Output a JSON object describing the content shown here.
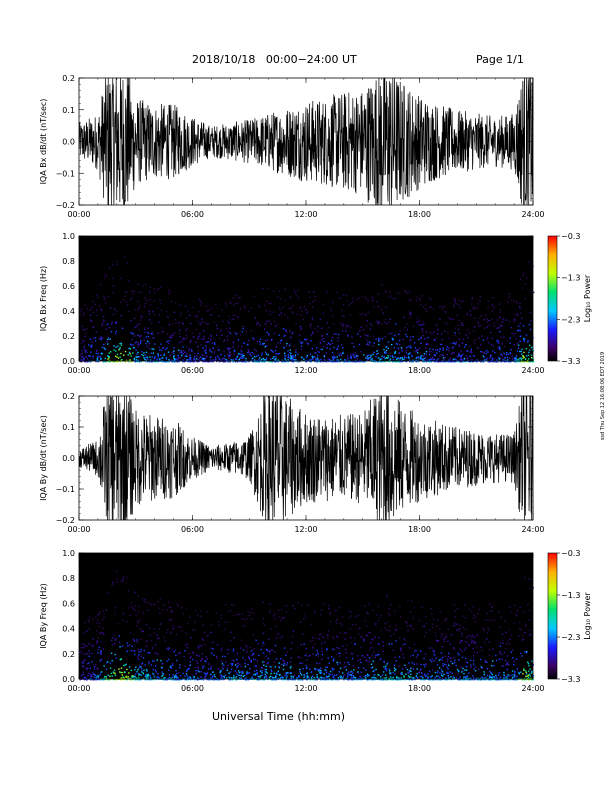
{
  "header": {
    "title": "2018/10/18   00:00−24:00 UT",
    "page": "Page 1/1"
  },
  "stamp": "ssd Thu Sep 12 16:08:06 EDT 2019",
  "xaxis_title": "Universal Time (hh:mm)",
  "colors": {
    "background": "#ffffff",
    "trace": "#000000",
    "spectrogram_bg": "#000000"
  },
  "chart_data": [
    {
      "type": "line",
      "ylabel": "IQA Bx dB/dt (nT/sec)",
      "xlim": [
        "00:00",
        "24:00"
      ],
      "ylim": [
        -0.2,
        0.2
      ],
      "x_ticks": [
        "00:00",
        "06:00",
        "12:00",
        "18:00",
        "24:00"
      ],
      "y_ticks": [
        "−0.2",
        "−0.1",
        "0.0",
        "0.1",
        "0.2"
      ],
      "amplitude_envelope": {
        "hours": [
          0,
          1,
          1.5,
          2,
          2.5,
          3,
          4,
          5,
          6,
          7,
          8,
          9,
          10,
          11,
          12,
          13,
          14,
          15,
          16,
          16.5,
          17,
          18,
          19,
          20,
          21,
          22,
          23,
          23.5,
          24
        ],
        "amplitude": [
          0.06,
          0.09,
          0.25,
          0.25,
          0.25,
          0.14,
          0.12,
          0.12,
          0.08,
          0.05,
          0.06,
          0.07,
          0.09,
          0.11,
          0.13,
          0.14,
          0.16,
          0.17,
          0.25,
          0.25,
          0.2,
          0.15,
          0.12,
          0.1,
          0.09,
          0.08,
          0.09,
          0.25,
          0.25
        ]
      }
    },
    {
      "type": "heatmap",
      "ylabel": "IQA Bx Freq (Hz)",
      "xlim": [
        "00:00",
        "24:00"
      ],
      "ylim": [
        0.0,
        1.0
      ],
      "x_ticks": [
        "00:00",
        "06:00",
        "12:00",
        "18:00",
        "24:00"
      ],
      "y_ticks": [
        "0.0",
        "0.2",
        "0.4",
        "0.6",
        "0.8",
        "1.0"
      ],
      "colorbar": {
        "label": "Log₁₀ Power",
        "range": [
          -3.3,
          -0.3
        ],
        "ticks": [
          "−0.3",
          "−1.3",
          "−2.3",
          "−3.3"
        ]
      },
      "intensity_profile": {
        "hours": [
          0,
          1,
          1.5,
          2,
          2.5,
          3,
          4,
          5,
          6,
          7,
          8,
          9,
          10,
          11,
          12,
          13,
          14,
          15,
          16,
          16.5,
          17,
          18,
          19,
          20,
          21,
          22,
          23,
          23.5,
          24
        ],
        "level": [
          0.2,
          0.35,
          0.6,
          0.75,
          0.7,
          0.45,
          0.4,
          0.35,
          0.3,
          0.25,
          0.3,
          0.35,
          0.45,
          0.4,
          0.35,
          0.35,
          0.35,
          0.35,
          0.45,
          0.5,
          0.4,
          0.35,
          0.3,
          0.3,
          0.3,
          0.3,
          0.35,
          0.7,
          0.6
        ]
      }
    },
    {
      "type": "line",
      "ylabel": "IQA By dB/dt (nT/sec)",
      "xlim": [
        "00:00",
        "24:00"
      ],
      "ylim": [
        -0.2,
        0.2
      ],
      "x_ticks": [
        "00:00",
        "06:00",
        "12:00",
        "18:00",
        "24:00"
      ],
      "y_ticks": [
        "−0.2",
        "−0.1",
        "0.0",
        "0.1",
        "0.2"
      ],
      "amplitude_envelope": {
        "hours": [
          0,
          1,
          1.5,
          2,
          2.5,
          3,
          4,
          5,
          6,
          7,
          8,
          9,
          10,
          10.5,
          11,
          12,
          13,
          14,
          15,
          16,
          16.5,
          17,
          18,
          19,
          20,
          21,
          22,
          23,
          23.5,
          24
        ],
        "amplitude": [
          0.03,
          0.06,
          0.25,
          0.25,
          0.25,
          0.16,
          0.14,
          0.13,
          0.07,
          0.04,
          0.05,
          0.07,
          0.25,
          0.25,
          0.2,
          0.15,
          0.14,
          0.14,
          0.15,
          0.25,
          0.25,
          0.18,
          0.14,
          0.12,
          0.1,
          0.09,
          0.08,
          0.08,
          0.25,
          0.25
        ]
      }
    },
    {
      "type": "heatmap",
      "ylabel": "IQA By Freq (Hz)",
      "xlim": [
        "00:00",
        "24:00"
      ],
      "ylim": [
        0.0,
        1.0
      ],
      "x_ticks": [
        "00:00",
        "06:00",
        "12:00",
        "18:00",
        "24:00"
      ],
      "y_ticks": [
        "0.0",
        "0.2",
        "0.4",
        "0.6",
        "0.8",
        "1.0"
      ],
      "colorbar": {
        "label": "Log₁₀ Power",
        "range": [
          -3.3,
          -0.3
        ],
        "ticks": [
          "−0.3",
          "−1.3",
          "−2.3",
          "−3.3"
        ]
      },
      "intensity_profile": {
        "hours": [
          0,
          1,
          1.5,
          2,
          2.5,
          3,
          4,
          5,
          6,
          7,
          8,
          9,
          10,
          11,
          12,
          13,
          14,
          15,
          16,
          16.5,
          17,
          18,
          19,
          20,
          21,
          22,
          23,
          23.5,
          24
        ],
        "level": [
          0.2,
          0.35,
          0.6,
          0.75,
          0.7,
          0.5,
          0.45,
          0.4,
          0.35,
          0.35,
          0.4,
          0.4,
          0.45,
          0.4,
          0.4,
          0.4,
          0.4,
          0.4,
          0.5,
          0.5,
          0.45,
          0.4,
          0.4,
          0.4,
          0.4,
          0.4,
          0.4,
          0.7,
          0.6
        ]
      }
    }
  ]
}
